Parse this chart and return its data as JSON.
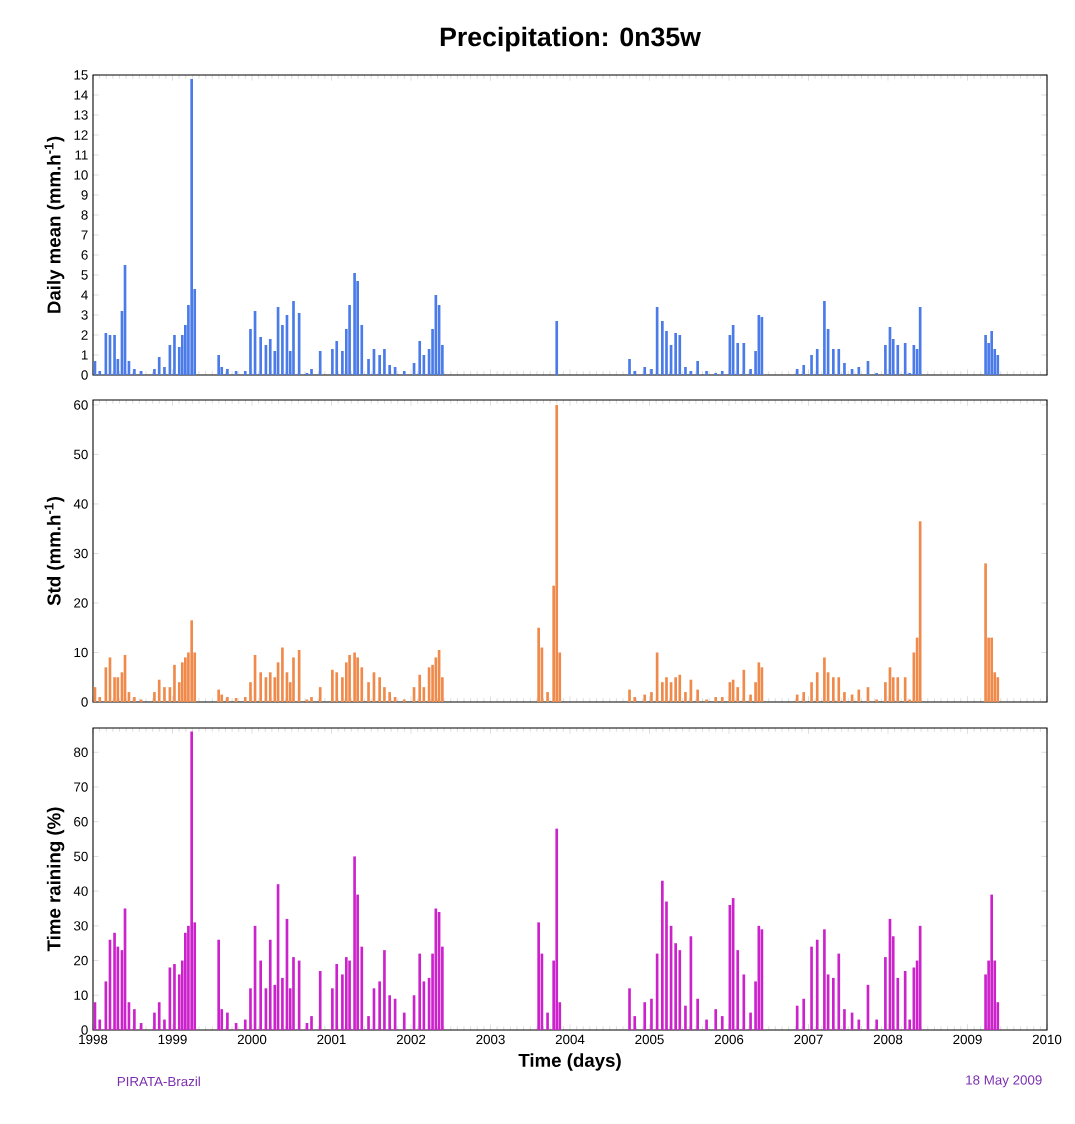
{
  "chart_data": [
    {
      "type": "bar",
      "title": "Precipitation: 0n35w",
      "ylabel": "Daily mean (mm.h$^{-1}$)",
      "color": "#4a7be8",
      "x": [
        "1998-01-10",
        "1998-02-01",
        "1998-03-01",
        "1998-03-20",
        "1998-04-10",
        "1998-04-25",
        "1998-05-14",
        "1998-05-28",
        "1998-06-15",
        "1998-07-10",
        "1998-08-10",
        "1998-10-10",
        "1998-11-01",
        "1998-11-25",
        "1998-12-20",
        "1999-01-10",
        "1999-02-01",
        "1999-02-15",
        "1999-03-01",
        "1999-03-15",
        "1999-03-30",
        "1999-04-13",
        "1999-08-01",
        "1999-08-15",
        "1999-09-10",
        "1999-10-20",
        "1999-12-01",
        "1999-12-25",
        "2000-01-15",
        "2000-02-10",
        "2000-03-05",
        "2000-03-25",
        "2000-04-15",
        "2000-04-30",
        "2000-05-20",
        "2000-06-10",
        "2000-06-25",
        "2000-07-10",
        "2000-08-05",
        "2000-09-10",
        "2000-10-01",
        "2000-11-10",
        "2001-01-05",
        "2001-01-25",
        "2001-02-20",
        "2001-03-10",
        "2001-03-25",
        "2001-04-17",
        "2001-05-01",
        "2001-05-20",
        "2001-06-20",
        "2001-07-15",
        "2001-08-10",
        "2001-09-01",
        "2001-09-25",
        "2001-10-20",
        "2001-12-01",
        "2002-01-15",
        "2002-02-10",
        "2002-03-01",
        "2002-03-25",
        "2002-04-10",
        "2002-04-25",
        "2002-05-10",
        "2002-05-25",
        "2003-08-10",
        "2003-08-25",
        "2003-09-20",
        "2003-10-18",
        "2003-11-01",
        "2003-11-15",
        "2004-10-01",
        "2004-10-25",
        "2004-12-10",
        "2005-01-10",
        "2005-02-05",
        "2005-03-01",
        "2005-03-20",
        "2005-04-10",
        "2005-05-01",
        "2005-05-20",
        "2005-06-15",
        "2005-07-10",
        "2005-08-10",
        "2005-09-20",
        "2005-11-01",
        "2005-12-01",
        "2006-01-05",
        "2006-01-20",
        "2006-02-10",
        "2006-03-10",
        "2006-04-10",
        "2006-05-03",
        "2006-05-18",
        "2006-06-01",
        "2006-11-10",
        "2006-12-10",
        "2007-01-15",
        "2007-02-10",
        "2007-03-15",
        "2007-04-01",
        "2007-04-25",
        "2007-05-20",
        "2007-06-15",
        "2007-07-20",
        "2007-08-20",
        "2007-10-01",
        "2007-11-10",
        "2007-12-20",
        "2008-01-10",
        "2008-01-25",
        "2008-02-15",
        "2008-03-20",
        "2008-04-10",
        "2008-04-29",
        "2008-05-14",
        "2008-05-28",
        "2009-03-25",
        "2009-04-08",
        "2009-04-22",
        "2009-05-06",
        "2009-05-20"
      ],
      "values": [
        0.7,
        0.2,
        2.1,
        2.0,
        2.0,
        0.8,
        3.2,
        5.5,
        0.7,
        0.3,
        0.2,
        0.3,
        0.9,
        0.4,
        1.5,
        2.0,
        1.4,
        2.0,
        2.5,
        3.5,
        14.8,
        4.3,
        1.0,
        0.4,
        0.3,
        0.2,
        0.2,
        2.3,
        3.2,
        1.9,
        1.5,
        1.8,
        1.2,
        3.4,
        2.5,
        3.0,
        1.2,
        3.7,
        3.1,
        0.1,
        0.3,
        1.2,
        1.3,
        1.7,
        1.2,
        2.3,
        3.5,
        5.1,
        4.7,
        2.5,
        0.8,
        1.3,
        1.0,
        1.3,
        0.5,
        0.4,
        0.2,
        0.6,
        1.7,
        1.0,
        1.3,
        2.3,
        4.0,
        3.5,
        1.5,
        null,
        null,
        null,
        null,
        2.7,
        null,
        0.8,
        0.2,
        0.4,
        0.3,
        3.4,
        2.7,
        2.2,
        1.5,
        2.1,
        2.0,
        0.4,
        0.2,
        0.7,
        0.2,
        0.1,
        0.2,
        2.0,
        2.5,
        1.6,
        1.6,
        0.3,
        1.2,
        3.0,
        2.9,
        0.3,
        0.5,
        1.0,
        1.3,
        3.7,
        2.3,
        1.3,
        1.3,
        0.6,
        0.3,
        0.4,
        0.7,
        0.1,
        1.5,
        2.4,
        1.8,
        1.5,
        1.6,
        0.1,
        1.5,
        1.3,
        3.4,
        2.0,
        1.6,
        2.2,
        1.3,
        1.0
      ],
      "xlim": [
        "1998",
        "2010"
      ],
      "xticks": [
        "1998",
        "1999",
        "2000",
        "2001",
        "2002",
        "2003",
        "2004",
        "2005",
        "2006",
        "2007",
        "2008",
        "2009",
        "2010"
      ],
      "ylim": [
        0,
        15
      ],
      "yticks": [
        0,
        1,
        2,
        3,
        4,
        5,
        6,
        7,
        8,
        9,
        10,
        11,
        12,
        13,
        14,
        15
      ],
      "tick_labels": "y"
    },
    {
      "type": "bar",
      "ylabel": "Std (mm.h$^{-1}$)",
      "color": "#f08a4b",
      "x": [
        "1998-01-10",
        "1998-02-01",
        "1998-03-01",
        "1998-03-20",
        "1998-04-10",
        "1998-04-25",
        "1998-05-14",
        "1998-05-28",
        "1998-06-15",
        "1998-07-10",
        "1998-08-10",
        "1998-10-10",
        "1998-11-01",
        "1998-11-25",
        "1998-12-20",
        "1999-01-10",
        "1999-02-01",
        "1999-02-15",
        "1999-03-01",
        "1999-03-15",
        "1999-03-30",
        "1999-04-13",
        "1999-08-01",
        "1999-08-15",
        "1999-09-10",
        "1999-10-20",
        "1999-12-01",
        "1999-12-25",
        "2000-01-15",
        "2000-02-10",
        "2000-03-05",
        "2000-03-25",
        "2000-04-15",
        "2000-04-30",
        "2000-05-20",
        "2000-06-10",
        "2000-06-25",
        "2000-07-10",
        "2000-08-05",
        "2000-09-10",
        "2000-10-01",
        "2000-11-10",
        "2001-01-05",
        "2001-01-25",
        "2001-02-20",
        "2001-03-10",
        "2001-03-25",
        "2001-04-17",
        "2001-05-01",
        "2001-05-20",
        "2001-06-20",
        "2001-07-15",
        "2001-08-10",
        "2001-09-01",
        "2001-09-25",
        "2001-10-20",
        "2001-12-01",
        "2002-01-15",
        "2002-02-10",
        "2002-03-01",
        "2002-03-25",
        "2002-04-10",
        "2002-04-25",
        "2002-05-10",
        "2002-05-25",
        "2003-08-10",
        "2003-08-25",
        "2003-09-20",
        "2003-10-18",
        "2003-11-01",
        "2003-11-15",
        "2004-10-01",
        "2004-10-25",
        "2004-12-10",
        "2005-01-10",
        "2005-02-05",
        "2005-03-01",
        "2005-03-20",
        "2005-04-10",
        "2005-05-01",
        "2005-05-20",
        "2005-06-15",
        "2005-07-10",
        "2005-08-10",
        "2005-09-20",
        "2005-11-01",
        "2005-12-01",
        "2006-01-05",
        "2006-01-20",
        "2006-02-10",
        "2006-03-10",
        "2006-04-10",
        "2006-05-03",
        "2006-05-18",
        "2006-06-01",
        "2006-11-10",
        "2006-12-10",
        "2007-01-15",
        "2007-02-10",
        "2007-03-15",
        "2007-04-01",
        "2007-04-25",
        "2007-05-20",
        "2007-06-15",
        "2007-07-20",
        "2007-08-20",
        "2007-10-01",
        "2007-11-10",
        "2007-12-20",
        "2008-01-10",
        "2008-01-25",
        "2008-02-15",
        "2008-03-20",
        "2008-04-10",
        "2008-04-29",
        "2008-05-14",
        "2008-05-28",
        "2009-03-25",
        "2009-04-08",
        "2009-04-22",
        "2009-05-06",
        "2009-05-20"
      ],
      "values": [
        3,
        1,
        7,
        9,
        5,
        5,
        6,
        9.5,
        2,
        1,
        0.5,
        2,
        4.5,
        3,
        3,
        7.5,
        4,
        8,
        9,
        10,
        16.5,
        10,
        2.5,
        1.5,
        1,
        0.8,
        1,
        4,
        9.5,
        6,
        5,
        6,
        5,
        8,
        11,
        6,
        4,
        9,
        10.5,
        0.5,
        1,
        3,
        6.5,
        6,
        5,
        8,
        9.5,
        10,
        9,
        7,
        4,
        6,
        5,
        3,
        2,
        1,
        0.5,
        3,
        5.5,
        3,
        7,
        7.5,
        9,
        10.5,
        5,
        15,
        11,
        2,
        23.5,
        60,
        10,
        2.5,
        1,
        1.5,
        2,
        10,
        4,
        5,
        4,
        5,
        5.5,
        2,
        4.5,
        2.5,
        0.5,
        1,
        1,
        4,
        4.5,
        3,
        6.5,
        1.5,
        4,
        8,
        7,
        1.5,
        2,
        4,
        6,
        9,
        6,
        5,
        5,
        2,
        1.5,
        2.5,
        3,
        0.5,
        4,
        7,
        5,
        5,
        5,
        0.5,
        10,
        13,
        36.5,
        28,
        13,
        13,
        6,
        5
      ],
      "xlim": [
        "1998",
        "2010"
      ],
      "xticks": [
        "1998",
        "1999",
        "2000",
        "2001",
        "2002",
        "2003",
        "2004",
        "2005",
        "2006",
        "2007",
        "2008",
        "2009",
        "2010"
      ],
      "ylim": [
        0,
        61
      ],
      "yticks": [
        0,
        10,
        20,
        30,
        40,
        50,
        60
      ],
      "tick_labels": "y"
    },
    {
      "type": "bar",
      "ylabel": "Time raining (%)",
      "xlabel": "Time (days)",
      "color": "#cc22cc",
      "annotations": [
        "PIRATA-Brazil",
        "18 May 2009"
      ],
      "x": [
        "1998-01-10",
        "1998-02-01",
        "1998-03-01",
        "1998-03-20",
        "1998-04-10",
        "1998-04-25",
        "1998-05-14",
        "1998-05-28",
        "1998-06-15",
        "1998-07-10",
        "1998-08-10",
        "1998-10-10",
        "1998-11-01",
        "1998-11-25",
        "1998-12-20",
        "1999-01-10",
        "1999-02-01",
        "1999-02-15",
        "1999-03-01",
        "1999-03-15",
        "1999-03-30",
        "1999-04-13",
        "1999-08-01",
        "1999-08-15",
        "1999-09-10",
        "1999-10-20",
        "1999-12-01",
        "1999-12-25",
        "2000-01-15",
        "2000-02-10",
        "2000-03-05",
        "2000-03-25",
        "2000-04-15",
        "2000-04-30",
        "2000-05-20",
        "2000-06-10",
        "2000-06-25",
        "2000-07-10",
        "2000-08-05",
        "2000-09-10",
        "2000-10-01",
        "2000-11-10",
        "2001-01-05",
        "2001-01-25",
        "2001-02-20",
        "2001-03-10",
        "2001-03-25",
        "2001-04-17",
        "2001-05-01",
        "2001-05-20",
        "2001-06-20",
        "2001-07-15",
        "2001-08-10",
        "2001-09-01",
        "2001-09-25",
        "2001-10-20",
        "2001-12-01",
        "2002-01-15",
        "2002-02-10",
        "2002-03-01",
        "2002-03-25",
        "2002-04-10",
        "2002-04-25",
        "2002-05-10",
        "2002-05-25",
        "2003-08-10",
        "2003-08-25",
        "2003-09-20",
        "2003-10-18",
        "2003-11-01",
        "2003-11-15",
        "2004-10-01",
        "2004-10-25",
        "2004-12-10",
        "2005-01-10",
        "2005-02-05",
        "2005-03-01",
        "2005-03-20",
        "2005-04-10",
        "2005-05-01",
        "2005-05-20",
        "2005-06-15",
        "2005-07-10",
        "2005-08-10",
        "2005-09-20",
        "2005-11-01",
        "2005-12-01",
        "2006-01-05",
        "2006-01-20",
        "2006-02-10",
        "2006-03-10",
        "2006-04-10",
        "2006-05-03",
        "2006-05-18",
        "2006-06-01",
        "2006-11-10",
        "2006-12-10",
        "2007-01-15",
        "2007-02-10",
        "2007-03-15",
        "2007-04-01",
        "2007-04-25",
        "2007-05-20",
        "2007-06-15",
        "2007-07-20",
        "2007-08-20",
        "2007-10-01",
        "2007-11-10",
        "2007-12-20",
        "2008-01-10",
        "2008-01-25",
        "2008-02-15",
        "2008-03-20",
        "2008-04-10",
        "2008-04-29",
        "2008-05-14",
        "2008-05-28",
        "2009-03-25",
        "2009-04-08",
        "2009-04-22",
        "2009-05-06",
        "2009-05-20"
      ],
      "values": [
        8,
        3,
        14,
        26,
        28,
        24,
        23,
        35,
        8,
        6,
        2,
        5,
        8,
        3,
        18,
        19,
        16,
        20,
        28,
        30,
        86,
        31,
        26,
        6,
        5,
        2,
        3,
        12,
        30,
        20,
        12,
        26,
        13,
        42,
        15,
        32,
        12,
        21,
        20,
        2,
        4,
        17,
        12,
        19,
        16,
        21,
        20,
        50,
        39,
        24,
        4,
        12,
        14,
        23,
        10,
        9,
        5,
        10,
        22,
        14,
        15,
        22,
        35,
        34,
        24,
        31,
        22,
        5,
        20,
        58,
        8,
        12,
        4,
        8,
        9,
        22,
        43,
        37,
        30,
        25,
        23,
        7,
        27,
        9,
        3,
        6,
        4,
        36,
        38,
        23,
        16,
        5,
        14,
        30,
        29,
        7,
        9,
        24,
        26,
        29,
        16,
        15,
        22,
        6,
        5,
        3,
        13,
        3,
        21,
        32,
        27,
        15,
        17,
        3,
        18,
        20,
        30,
        16,
        20,
        39,
        20,
        8
      ],
      "xlim": [
        "1998",
        "2010"
      ],
      "xticks": [
        "1998",
        "1999",
        "2000",
        "2001",
        "2002",
        "2003",
        "2004",
        "2005",
        "2006",
        "2007",
        "2008",
        "2009",
        "2010"
      ],
      "ylim": [
        0,
        87
      ],
      "yticks": [
        0,
        10,
        20,
        30,
        40,
        50,
        60,
        70,
        80
      ]
    }
  ]
}
